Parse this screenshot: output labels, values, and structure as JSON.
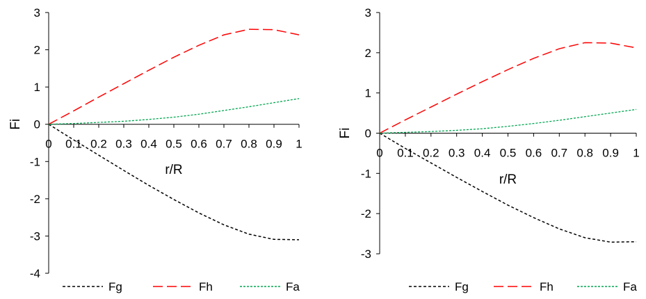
{
  "chart_data": [
    {
      "type": "line",
      "title": "",
      "xlabel": "r/R",
      "ylabel": "Fi",
      "xlim": [
        0,
        1
      ],
      "ylim": [
        -4,
        3
      ],
      "x_ticks": [
        "0",
        "0.1",
        "0.2",
        "0.3",
        "0.4",
        "0.5",
        "0.6",
        "0.7",
        "0.8",
        "0.9",
        "1"
      ],
      "y_ticks": [
        "3",
        "2",
        "1",
        "0",
        "-1",
        "-2",
        "-3",
        "-4"
      ],
      "x": [
        0,
        0.1,
        0.2,
        0.3,
        0.4,
        0.5,
        0.6,
        0.7,
        0.8,
        0.9,
        1
      ],
      "grid": false,
      "legend_position": "bottom",
      "series": [
        {
          "name": "Fg",
          "color": "#000000",
          "style": "short-dash",
          "values": [
            0,
            -0.42,
            -0.83,
            -1.24,
            -1.64,
            -2.02,
            -2.38,
            -2.7,
            -2.95,
            -3.09,
            -3.1
          ]
        },
        {
          "name": "Fh",
          "color": "#ff0000",
          "style": "long-dash",
          "values": [
            0,
            0.36,
            0.73,
            1.09,
            1.45,
            1.8,
            2.12,
            2.4,
            2.55,
            2.54,
            2.4
          ]
        },
        {
          "name": "Fa",
          "color": "#00a550",
          "style": "dot",
          "values": [
            0,
            0.02,
            0.05,
            0.08,
            0.13,
            0.19,
            0.27,
            0.37,
            0.47,
            0.58,
            0.69
          ]
        }
      ]
    },
    {
      "type": "line",
      "title": "",
      "xlabel": "r/R",
      "ylabel": "Fi",
      "xlim": [
        0,
        1
      ],
      "ylim": [
        -3,
        3
      ],
      "x_ticks": [
        "0",
        "0.1",
        "0.2",
        "0.3",
        "0.4",
        "0.5",
        "0.6",
        "0.7",
        "0.8",
        "0.9",
        "1"
      ],
      "y_ticks": [
        "3",
        "2",
        "1",
        "0",
        "-1",
        "-2",
        "-3"
      ],
      "x": [
        0,
        0.1,
        0.2,
        0.3,
        0.4,
        0.5,
        0.6,
        0.7,
        0.8,
        0.9,
        1
      ],
      "grid": false,
      "legend_position": "bottom",
      "series": [
        {
          "name": "Fg",
          "color": "#000000",
          "style": "short-dash",
          "values": [
            0,
            -0.38,
            -0.74,
            -1.1,
            -1.45,
            -1.79,
            -2.1,
            -2.38,
            -2.6,
            -2.71,
            -2.7
          ]
        },
        {
          "name": "Fh",
          "color": "#ff0000",
          "style": "long-dash",
          "values": [
            0,
            0.33,
            0.65,
            0.97,
            1.28,
            1.58,
            1.86,
            2.1,
            2.25,
            2.24,
            2.12
          ]
        },
        {
          "name": "Fa",
          "color": "#00a550",
          "style": "dot",
          "values": [
            0,
            0.02,
            0.04,
            0.07,
            0.11,
            0.17,
            0.24,
            0.32,
            0.41,
            0.5,
            0.59
          ]
        }
      ]
    }
  ]
}
